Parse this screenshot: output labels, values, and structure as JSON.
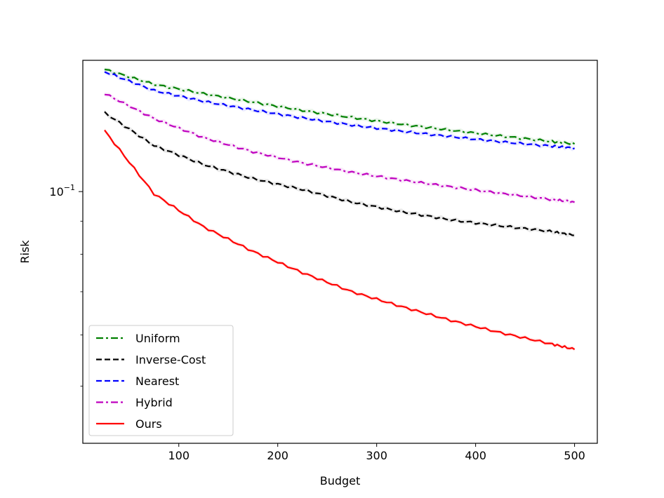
{
  "chart_data": {
    "type": "line",
    "title": "",
    "xlabel": "Budget",
    "ylabel": "Risk",
    "xlim": [
      3,
      523
    ],
    "ylim": [
      0.0408,
      0.1596
    ],
    "yscale": "log",
    "x_ticks": [
      100,
      200,
      300,
      400,
      500
    ],
    "y_major_ticks": [
      {
        "value": 0.1,
        "label_base": "10",
        "label_exp": "−1"
      }
    ],
    "y_minor_ticks": [
      0.05,
      0.06,
      0.07,
      0.08,
      0.09,
      0.2
    ],
    "grid": false,
    "legend_position": "lower-left",
    "x": [
      25,
      75,
      125,
      175,
      225,
      275,
      325,
      375,
      425,
      475,
      500
    ],
    "series": [
      {
        "name": "Uniform",
        "color": "#008000",
        "dash": "dash-dot",
        "values": [
          0.1545,
          0.1465,
          0.1417,
          0.1375,
          0.1335,
          0.1302,
          0.1271,
          0.1244,
          0.1219,
          0.1196,
          0.1185
        ]
      },
      {
        "name": "Inverse-Cost",
        "color": "#000000",
        "dash": "dashed",
        "values": [
          0.1324,
          0.1178,
          0.1101,
          0.1047,
          0.1007,
          0.0963,
          0.0931,
          0.0904,
          0.0885,
          0.0868,
          0.0855
        ]
      },
      {
        "name": "Nearest",
        "color": "#0000ff",
        "dash": "dashed",
        "values": [
          0.1533,
          0.1433,
          0.1379,
          0.1337,
          0.13,
          0.1267,
          0.124,
          0.1216,
          0.1194,
          0.1176,
          0.1167
        ]
      },
      {
        "name": "Hybrid",
        "color": "#bf00bf",
        "dash": "dash-dot",
        "values": [
          0.1418,
          0.1297,
          0.1212,
          0.1152,
          0.1107,
          0.1071,
          0.1042,
          0.1017,
          0.0994,
          0.0973,
          0.0963
        ]
      },
      {
        "name": "Ours",
        "color": "#ff0000",
        "dash": "solid",
        "values": [
          0.1242,
          0.0992,
          0.0882,
          0.0808,
          0.0749,
          0.07,
          0.0664,
          0.0632,
          0.0605,
          0.0582,
          0.057
        ]
      }
    ]
  }
}
